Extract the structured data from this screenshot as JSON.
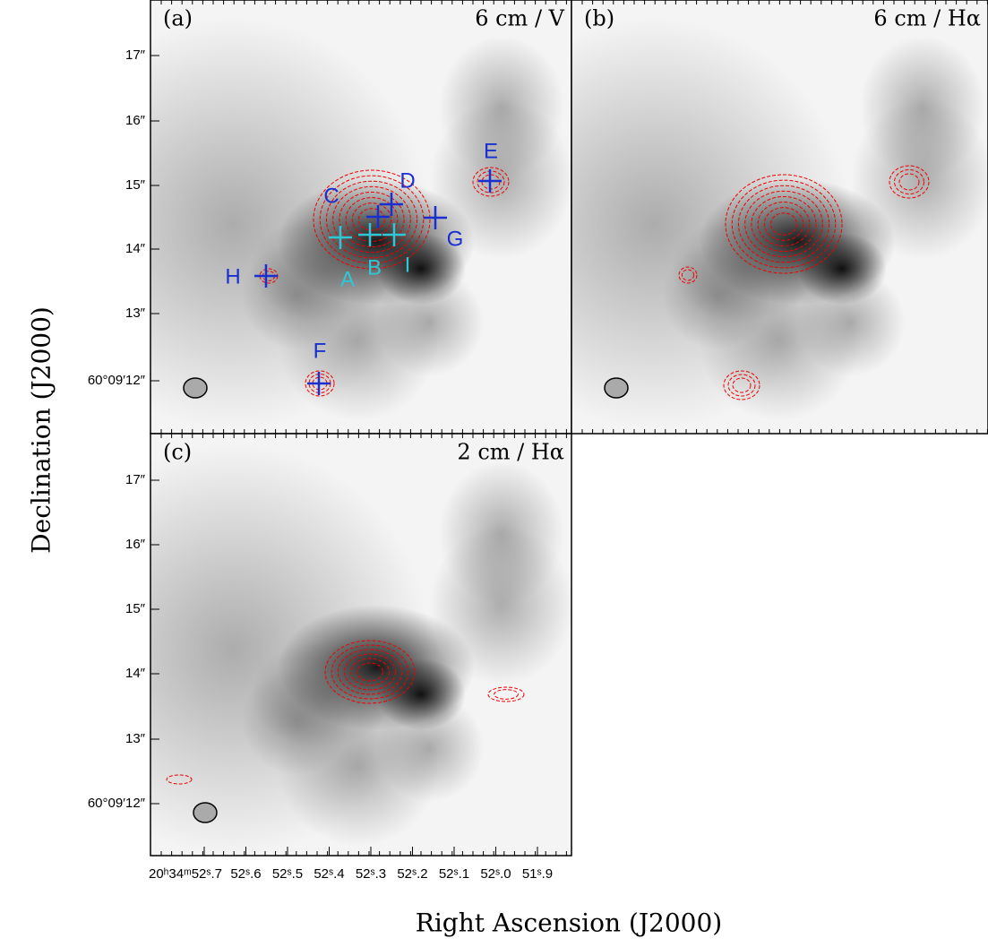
{
  "axes": {
    "x_label": "Right Ascension (J2000)",
    "y_label": "Declination (J2000)"
  },
  "panels": [
    {
      "tag": "(a)",
      "title": "6 cm / V",
      "sources": [
        "C",
        "D",
        "E",
        "G",
        "H",
        "A",
        "B",
        "I",
        "F"
      ]
    },
    {
      "tag": "(b)",
      "title": "6 cm / Hα"
    },
    {
      "tag": "(c)",
      "title": "2 cm / Hα"
    }
  ],
  "y_tick_labels": [
    "17″",
    "16″",
    "15″",
    "14″",
    "13″",
    "60°09′12″"
  ],
  "x_tick_labels": [
    "20ʰ34ᵐ52ˢ.7",
    "52ˢ.6",
    "52ˢ.5",
    "52ˢ.4",
    "52ˢ.3",
    "52ˢ.2",
    "52ˢ.1",
    "52ˢ.0",
    "51ˢ.9"
  ]
}
